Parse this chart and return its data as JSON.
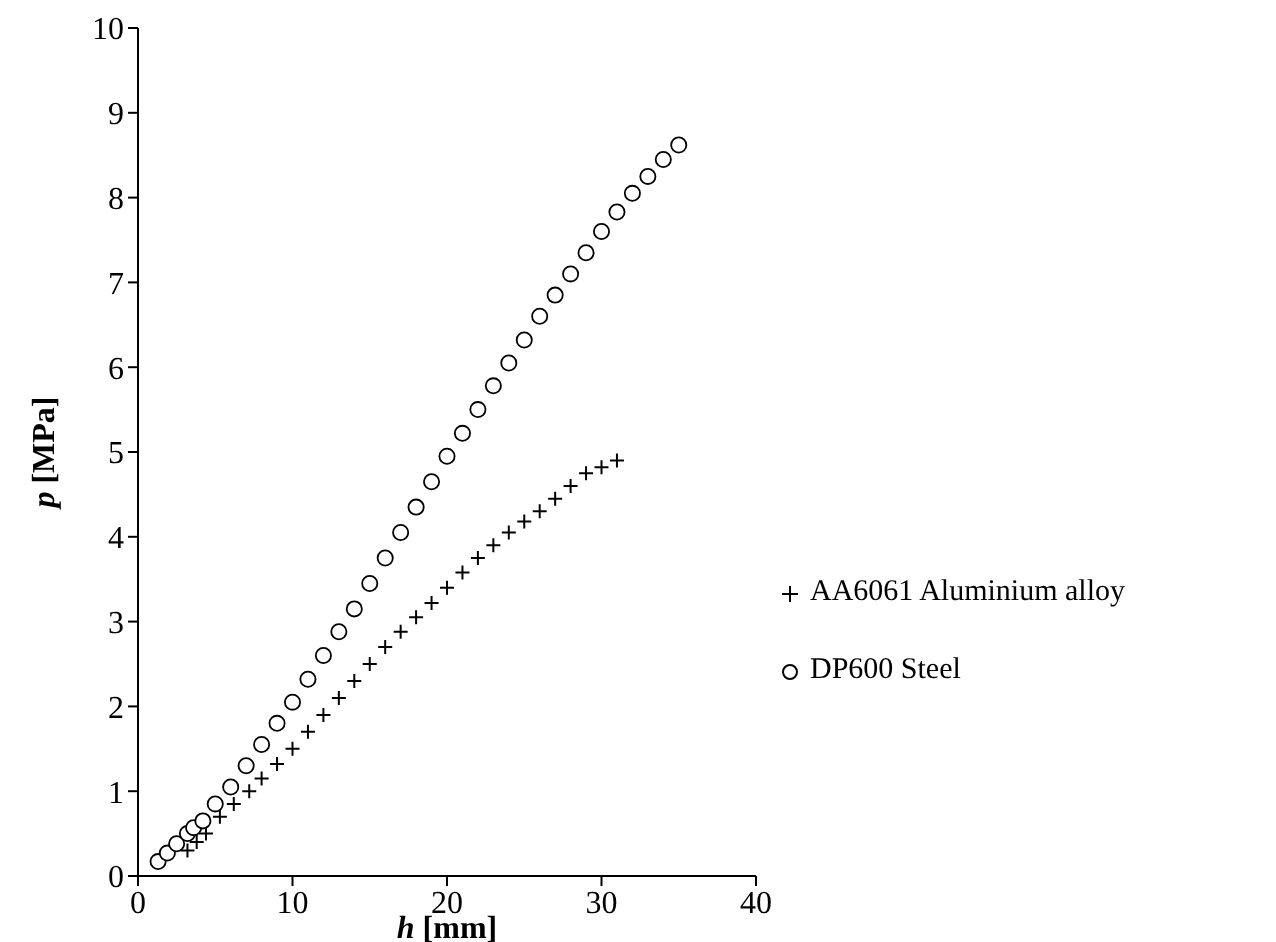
{
  "chart_data": {
    "type": "scatter",
    "xlabel": "h [mm]",
    "ylabel": "p [MPa]",
    "xlim": [
      0,
      40
    ],
    "xticks": [
      0,
      10,
      20,
      30,
      40
    ],
    "ylim": [
      0,
      10
    ],
    "yticks": [
      0,
      1,
      2,
      3,
      4,
      5,
      6,
      7,
      8,
      9,
      10
    ],
    "grid": false,
    "legend": "bottom right",
    "series": [
      {
        "name": "AA6061 Aluminium alloy",
        "color": "#000000",
        "marker": "cross",
        "x": [
          3.2,
          3.8,
          4.4,
          5.3,
          6.2,
          7.2,
          8,
          9,
          10,
          11,
          12,
          13,
          14,
          15,
          16,
          17,
          18,
          19,
          20,
          21,
          22,
          23,
          24,
          25,
          26,
          27,
          28,
          29,
          30,
          31
        ],
        "values": [
          0.3,
          0.4,
          0.5,
          0.7,
          0.85,
          1.0,
          1.15,
          1.32,
          1.5,
          1.7,
          1.9,
          2.1,
          2.3,
          2.5,
          2.7,
          2.88,
          3.05,
          3.22,
          3.4,
          3.58,
          3.75,
          3.9,
          4.05,
          4.18,
          4.3,
          4.45,
          4.6,
          4.75,
          4.82,
          4.9
        ]
      },
      {
        "name": "DP600 Steel",
        "color": "#000000",
        "marker": "circle",
        "x": [
          1.3,
          1.9,
          2.5,
          3.2,
          3.6,
          4.2,
          5,
          6,
          7,
          8,
          9,
          10,
          11,
          12,
          13,
          14,
          15,
          16,
          17,
          18,
          19,
          20,
          21,
          22,
          23,
          24,
          25,
          26,
          27,
          28,
          29,
          30,
          31,
          32,
          33,
          34,
          35
        ],
        "values": [
          0.17,
          0.27,
          0.38,
          0.5,
          0.57,
          0.65,
          0.85,
          1.05,
          1.3,
          1.55,
          1.8,
          2.05,
          2.32,
          2.6,
          2.88,
          3.15,
          3.45,
          3.75,
          4.05,
          4.35,
          4.65,
          4.95,
          5.22,
          5.5,
          5.78,
          6.05,
          6.32,
          6.6,
          6.85,
          7.1,
          7.35,
          7.6,
          7.83,
          8.05,
          8.25,
          8.45,
          8.62
        ]
      }
    ]
  }
}
